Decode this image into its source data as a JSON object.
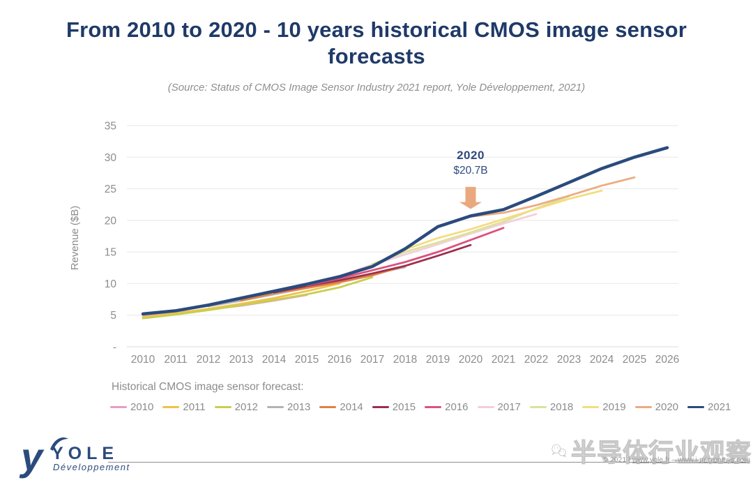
{
  "header": {
    "title": "From 2010 to 2020 - 10 years historical CMOS image sensor forecasts",
    "subtitle": "(Source: Status of CMOS Image Sensor Industry 2021 report, Yole Développement, 2021)"
  },
  "chart_data": {
    "type": "line",
    "ylabel": "Revenue ($B)",
    "xlabel": "",
    "xlim": [
      2010,
      2026
    ],
    "ylim": [
      0,
      35
    ],
    "grid": true,
    "legend_position": "bottom",
    "legend_title": "Historical CMOS image sensor forecast:",
    "x_ticks": [
      "2010",
      "2011",
      "2012",
      "2013",
      "2014",
      "2015",
      "2016",
      "2017",
      "2018",
      "2019",
      "2020",
      "2021",
      "2022",
      "2023",
      "2024",
      "2025",
      "2026"
    ],
    "y_ticks": [
      {
        "value": 0,
        "label": "-"
      },
      {
        "value": 5,
        "label": "5"
      },
      {
        "value": 10,
        "label": "10"
      },
      {
        "value": 15,
        "label": "15"
      },
      {
        "value": 20,
        "label": "20"
      },
      {
        "value": 25,
        "label": "25"
      },
      {
        "value": 30,
        "label": "30"
      },
      {
        "value": 35,
        "label": "35"
      }
    ],
    "annotation": {
      "label": "2020",
      "value_label": "$20.7B",
      "year": 2020,
      "value": 20.7,
      "arrow_color": "#EAA87E"
    },
    "series": [
      {
        "name": "2010",
        "color": "#E59FBE",
        "start_year": 2010,
        "values": [
          4.9,
          5.4,
          5.9,
          6.5,
          7.3,
          8.2
        ]
      },
      {
        "name": "2011",
        "color": "#F0C24A",
        "start_year": 2010,
        "values": [
          4.7,
          5.3,
          6.0,
          6.8,
          7.7,
          8.8,
          10.0
        ]
      },
      {
        "name": "2012",
        "color": "#C7CF4F",
        "start_year": 2010,
        "values": [
          4.5,
          5.1,
          5.8,
          6.6,
          7.4,
          8.3,
          9.4,
          11.0
        ]
      },
      {
        "name": "2013",
        "color": "#B3B3B3",
        "start_year": 2012,
        "values": [
          6.4,
          7.3,
          8.3,
          9.3,
          10.4,
          11.5,
          12.6
        ]
      },
      {
        "name": "2014",
        "color": "#DE8244",
        "start_year": 2013,
        "values": [
          7.3,
          8.5,
          9.3,
          10.2,
          11.3,
          12.8
        ]
      },
      {
        "name": "2015",
        "color": "#9C2F4E",
        "start_year": 2014,
        "values": [
          8.6,
          9.6,
          10.5,
          11.6,
          12.8,
          14.4,
          16.1
        ]
      },
      {
        "name": "2016",
        "color": "#D9537F",
        "start_year": 2015,
        "values": [
          9.7,
          10.8,
          12.1,
          13.4,
          15.0,
          16.9,
          18.8
        ]
      },
      {
        "name": "2017",
        "color": "#F3CFDC",
        "start_year": 2016,
        "values": [
          11.2,
          13.0,
          14.6,
          16.2,
          17.9,
          19.5,
          21.0
        ]
      },
      {
        "name": "2018",
        "color": "#DBE29A",
        "start_year": 2017,
        "values": [
          13.1,
          15.0,
          16.5,
          18.1,
          19.8,
          21.9,
          23.8
        ]
      },
      {
        "name": "2019",
        "color": "#F4DC80",
        "start_year": 2018,
        "values": [
          15.4,
          17.2,
          18.6,
          20.2,
          21.8,
          23.4,
          24.7
        ]
      },
      {
        "name": "2020",
        "color": "#ECAC80",
        "start_year": 2019,
        "values": [
          19.0,
          20.6,
          21.2,
          22.4,
          23.9,
          25.5,
          26.8
        ]
      },
      {
        "name": "2021",
        "color": "#2B4B7C",
        "start_year": 2010,
        "width": 4.5,
        "values": [
          5.2,
          5.7,
          6.6,
          7.7,
          8.8,
          9.9,
          11.1,
          12.7,
          15.5,
          19.0,
          20.7,
          21.7,
          23.8,
          26.0,
          28.2,
          30.0,
          31.5
        ]
      }
    ]
  },
  "footer": {
    "logo": {
      "brand": "YOLE",
      "sub": "Développement"
    },
    "copyright": {
      "prefix": "© 2021 | ",
      "url1": "www.yole.fr",
      "sep": " – ",
      "url2": "www.i-micronews.com"
    },
    "watermark": "半导体行业观察"
  }
}
